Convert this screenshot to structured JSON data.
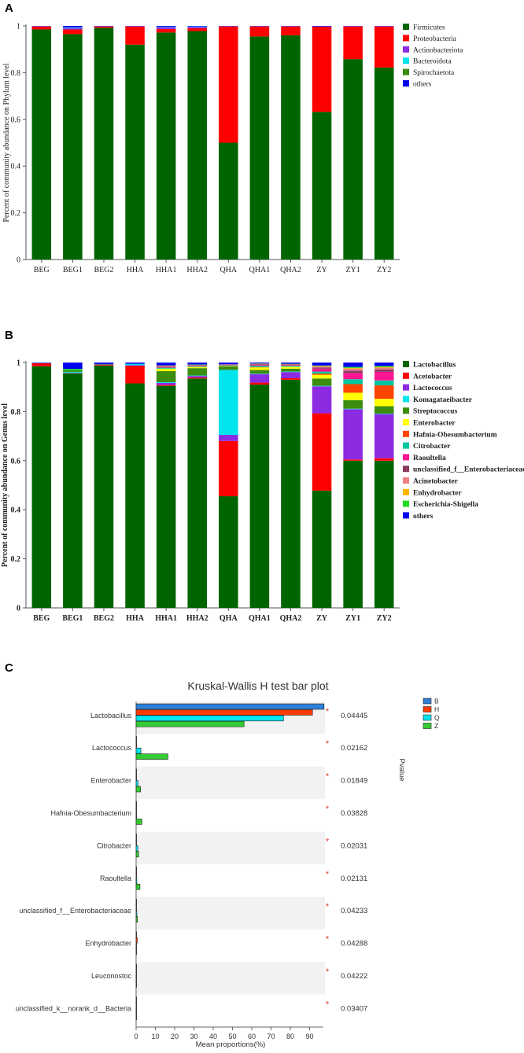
{
  "panels": {
    "a": "A",
    "b": "B",
    "c": "C"
  },
  "chart_data": [
    {
      "type": "bar",
      "stacked": true,
      "title": "",
      "ylabel": "Percent of community abundance on Phylum level",
      "xlabel": "",
      "ylim": [
        0,
        1
      ],
      "yticks": [
        "0",
        "0.2",
        "0.4",
        "0.6",
        "0.8",
        "1"
      ],
      "categories": [
        "BEG",
        "BEG1",
        "BEG2",
        "HHA",
        "HHA1",
        "HHA2",
        "QHA",
        "QHA1",
        "QHA2",
        "ZY",
        "ZY1",
        "ZY2"
      ],
      "legend_position": "right",
      "series": [
        {
          "name": "Firmicutes",
          "color": "#006400",
          "values": [
            0.985,
            0.965,
            0.992,
            0.92,
            0.972,
            0.978,
            0.5,
            0.955,
            0.96,
            0.632,
            0.858,
            0.822
          ]
        },
        {
          "name": "Proteobacteria",
          "color": "#ff0000",
          "values": [
            0.013,
            0.02,
            0.006,
            0.078,
            0.015,
            0.012,
            0.498,
            0.043,
            0.038,
            0.365,
            0.14,
            0.176
          ]
        },
        {
          "name": "Actinobacteriota",
          "color": "#8b2be2",
          "values": [
            0.001,
            0.006,
            0.001,
            0.001,
            0.008,
            0.006,
            0.001,
            0.001,
            0.001,
            0.001,
            0.001,
            0.001
          ]
        },
        {
          "name": "Bacteroidota",
          "color": "#00e5ee",
          "values": [
            0.0,
            0.003,
            0.0,
            0.0,
            0.002,
            0.002,
            0.0,
            0.0,
            0.0,
            0.0,
            0.0,
            0.0
          ]
        },
        {
          "name": "Spirochaetota",
          "color": "#3c8c10",
          "values": [
            0.0,
            0.0,
            0.0,
            0.0,
            0.0,
            0.0,
            0.0,
            0.0,
            0.0,
            0.0,
            0.0,
            0.0
          ]
        },
        {
          "name": "others",
          "color": "#0000ee",
          "values": [
            0.001,
            0.006,
            0.001,
            0.001,
            0.003,
            0.002,
            0.001,
            0.001,
            0.001,
            0.002,
            0.001,
            0.001
          ]
        }
      ]
    },
    {
      "type": "bar",
      "stacked": true,
      "title": "",
      "ylabel": "Percent of community abundance on Genus level",
      "xlabel": "",
      "ylim": [
        0,
        1
      ],
      "yticks": [
        "0",
        "0.2",
        "0.4",
        "0.6",
        "0.8",
        "1"
      ],
      "categories": [
        "BEG",
        "BEG1",
        "BEG2",
        "HHA",
        "HHA1",
        "HHA2",
        "QHA",
        "QHA1",
        "QHA2",
        "ZY",
        "ZY1",
        "ZY2"
      ],
      "legend_position": "right",
      "series": [
        {
          "name": "Lactobacillus",
          "color": "#006400",
          "values": [
            0.985,
            0.955,
            0.988,
            0.915,
            0.905,
            0.935,
            0.455,
            0.91,
            0.93,
            0.478,
            0.6,
            0.6
          ]
        },
        {
          "name": "Acetobacter",
          "color": "#ff0000",
          "values": [
            0.012,
            0.002,
            0.004,
            0.072,
            0.004,
            0.004,
            0.225,
            0.008,
            0.006,
            0.315,
            0.005,
            0.01
          ]
        },
        {
          "name": "Lactococcus",
          "color": "#8b2be2",
          "values": [
            0.0,
            0.0,
            0.0,
            0.002,
            0.008,
            0.006,
            0.025,
            0.035,
            0.025,
            0.11,
            0.205,
            0.18
          ]
        },
        {
          "name": "Komagataeibacter",
          "color": "#00e5ee",
          "values": [
            0.001,
            0.005,
            0.002,
            0.006,
            0.003,
            0.002,
            0.265,
            0.002,
            0.002,
            0.002,
            0.002,
            0.002
          ]
        },
        {
          "name": "Streptococcus",
          "color": "#3c8c10",
          "values": [
            0.0,
            0.006,
            0.0,
            0.0,
            0.045,
            0.03,
            0.015,
            0.015,
            0.012,
            0.03,
            0.035,
            0.03
          ]
        },
        {
          "name": "Enterobacter",
          "color": "#ffff00",
          "values": [
            0.0,
            0.0,
            0.0,
            0.0,
            0.01,
            0.005,
            0.002,
            0.01,
            0.008,
            0.015,
            0.03,
            0.03
          ]
        },
        {
          "name": "Hafnia-Obesumbacterium",
          "color": "#ff4500",
          "values": [
            0.0,
            0.0,
            0.0,
            0.0,
            0.0,
            0.0,
            0.0,
            0.002,
            0.0,
            0.005,
            0.035,
            0.055
          ]
        },
        {
          "name": "Citrobacter",
          "color": "#00c8a0",
          "values": [
            0.0,
            0.0,
            0.0,
            0.0,
            0.004,
            0.003,
            0.002,
            0.005,
            0.004,
            0.008,
            0.02,
            0.02
          ]
        },
        {
          "name": "Raoultella",
          "color": "#ff1493",
          "values": [
            0.0,
            0.0,
            0.0,
            0.0,
            0.003,
            0.002,
            0.002,
            0.003,
            0.003,
            0.012,
            0.025,
            0.035
          ]
        },
        {
          "name": "unclassified_f__Enterobacteriaceae",
          "color": "#8b3a62",
          "values": [
            0.0,
            0.0,
            0.0,
            0.0,
            0.002,
            0.002,
            0.001,
            0.002,
            0.002,
            0.005,
            0.01,
            0.01
          ]
        },
        {
          "name": "Acinetobacter",
          "color": "#f08080",
          "values": [
            0.0,
            0.0,
            0.0,
            0.0,
            0.002,
            0.001,
            0.001,
            0.002,
            0.001,
            0.004,
            0.008,
            0.007
          ]
        },
        {
          "name": "Enhydrobacter",
          "color": "#ffb300",
          "values": [
            0.0,
            0.0,
            0.0,
            0.0,
            0.001,
            0.001,
            0.0,
            0.001,
            0.001,
            0.002,
            0.003,
            0.003
          ]
        },
        {
          "name": "Escherichia-Shigella",
          "color": "#22dd22",
          "values": [
            0.0,
            0.006,
            0.0,
            0.0,
            0.001,
            0.001,
            0.0,
            0.001,
            0.001,
            0.002,
            0.004,
            0.004
          ]
        },
        {
          "name": "others",
          "color": "#0000ee",
          "values": [
            0.002,
            0.026,
            0.006,
            0.005,
            0.012,
            0.008,
            0.007,
            0.004,
            0.005,
            0.012,
            0.018,
            0.014
          ]
        }
      ]
    },
    {
      "type": "bar",
      "orientation": "horizontal",
      "title": "Kruskal-Wallis H test bar plot",
      "xlabel": "Mean proportions(%)",
      "ylabel": "",
      "right_label": "Pvalue",
      "xlim": [
        0,
        100
      ],
      "xticks": [
        "0",
        "10",
        "20",
        "30",
        "40",
        "50",
        "60",
        "70",
        "80",
        "90"
      ],
      "categories": [
        "Lactobacillus",
        "Lactococcus",
        "Enterobacter",
        "Hafnia-Obesumbacterium",
        "Citrobacter",
        "Raoultella",
        "unclassified_f__Enterobacteriaceae",
        "Enhydrobacter",
        "Leuconostoc",
        "unclassified_k__norank_d__Bacteria"
      ],
      "pvalues": [
        "0.04445",
        "0.02162",
        "0.01849",
        "0.03828",
        "0.02031",
        "0.02131",
        "0.04233",
        "0.04288",
        "0.04222",
        "0.03407"
      ],
      "significance_marker": "*",
      "legend_position": "top-right",
      "series": [
        {
          "name": "B",
          "color": "#2e7fd6",
          "values": [
            97.5,
            0.1,
            0.1,
            0.05,
            0.1,
            0.05,
            0.05,
            0.05,
            0.1,
            0.05
          ]
        },
        {
          "name": "H",
          "color": "#ff3a00",
          "values": [
            91.5,
            0.3,
            0.2,
            0.1,
            0.2,
            0.1,
            0.1,
            0.6,
            0.2,
            0.1
          ]
        },
        {
          "name": "Q",
          "color": "#00e5ee",
          "values": [
            76.5,
            2.5,
            1.0,
            0.2,
            0.9,
            0.4,
            0.4,
            0.2,
            0.2,
            0.1
          ]
        },
        {
          "name": "Z",
          "color": "#33cc33",
          "values": [
            56.0,
            16.5,
            2.3,
            3.0,
            1.3,
            2.0,
            0.7,
            0.1,
            0.2,
            0.1
          ]
        }
      ]
    }
  ]
}
